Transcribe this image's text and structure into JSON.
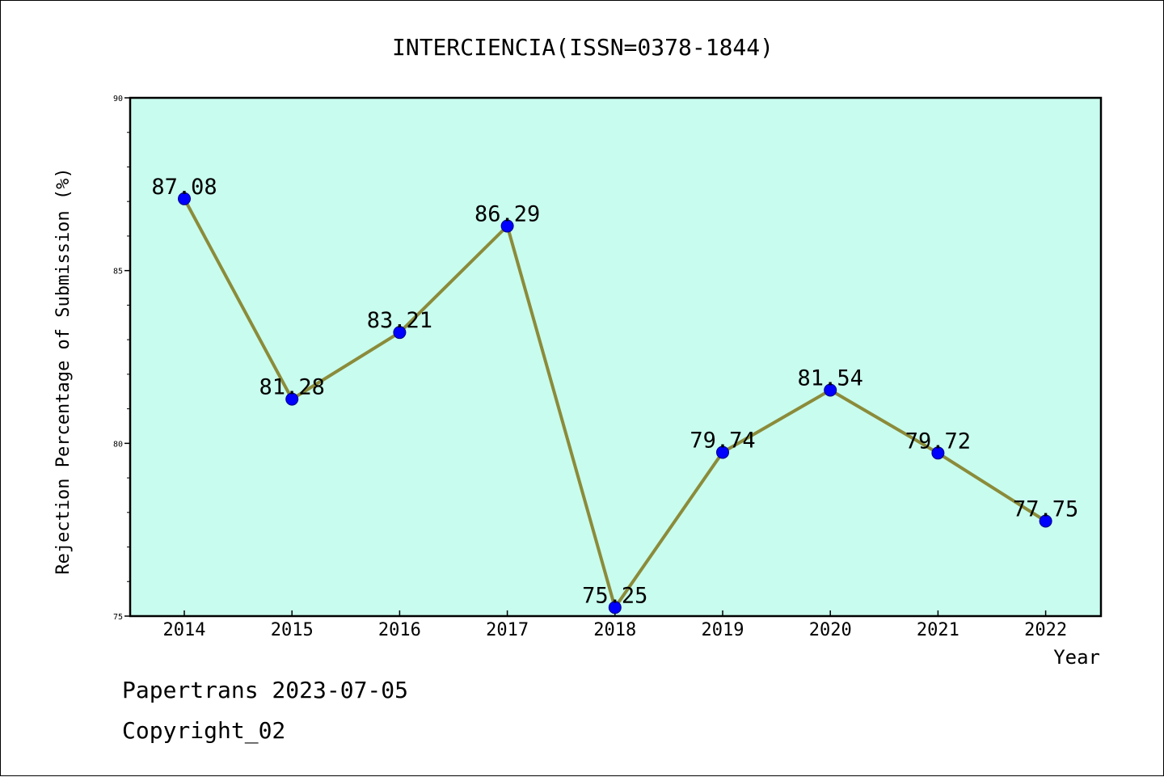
{
  "chart_data": {
    "type": "line",
    "title": "INTERCIENCIA(ISSN=0378-1844)",
    "xlabel": "Year",
    "ylabel": "Rejection Percentage of Submission (%)",
    "categories": [
      "2014",
      "2015",
      "2016",
      "2017",
      "2018",
      "2019",
      "2020",
      "2021",
      "2022"
    ],
    "series": [
      {
        "values": [
          87.08,
          81.28,
          83.21,
          86.29,
          75.25,
          79.74,
          81.54,
          79.72,
          77.75
        ]
      }
    ],
    "data_labels": [
      "87.08",
      "81.28",
      "83.21",
      "86.29",
      "75.25",
      "79.74",
      "81.54",
      "79.72",
      "77.75"
    ],
    "ylim": [
      75,
      90
    ],
    "yticks": [
      75,
      80,
      85,
      90
    ],
    "ytick_labels": [
      "75",
      "80",
      "85",
      "90"
    ],
    "y_minor_step": 1,
    "grid": false,
    "legend": "none",
    "colors": {
      "plot_background": "#c8fcee",
      "line": "#8b8b3a",
      "marker": "#0000ff",
      "axes": "#000000"
    }
  },
  "footer": {
    "source_line": "Papertrans 2023-07-05",
    "copyright_line": "Copyright_02"
  }
}
